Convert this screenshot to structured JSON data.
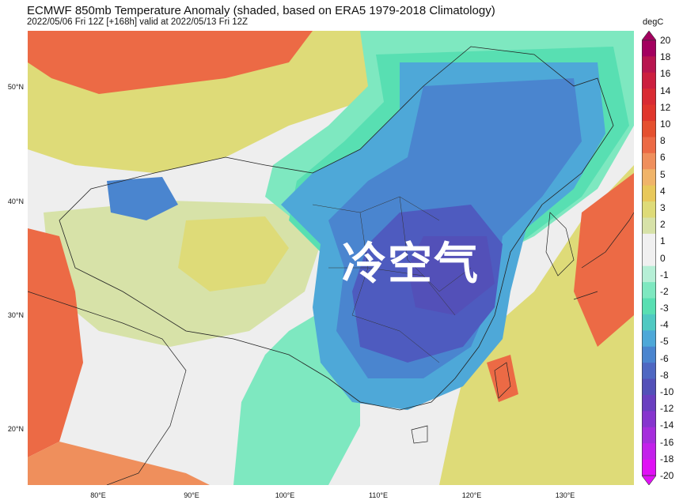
{
  "title": "ECMWF 850mb Temperature Anomaly (shaded, based on ERA5 1979-2018 Climatology)",
  "subtitle": "2022/05/06 Fri 12Z [+168h] valid at 2022/05/13 Fri 12Z",
  "overlay_text": "冷空气",
  "colorbar": {
    "unit": "degC",
    "ticks": [
      "20",
      "18",
      "16",
      "14",
      "12",
      "10",
      "8",
      "6",
      "5",
      "4",
      "3",
      "2",
      "1",
      "0",
      "-1",
      "-2",
      "-3",
      "-4",
      "-5",
      "-6",
      "-8",
      "-10",
      "-12",
      "-14",
      "-16",
      "-18",
      "-20"
    ],
    "colors": [
      "#a3005f",
      "#b8154f",
      "#cc1f3f",
      "#d92b33",
      "#e0362c",
      "#e5502f",
      "#ec6a45",
      "#ef8f5c",
      "#f0b469",
      "#e8c85a",
      "#dedb78",
      "#d7e2a8",
      "#f0f0f0",
      "#f0f0f0",
      "#b6efd6",
      "#7ee8c0",
      "#58dfb2",
      "#4fc9c2",
      "#4ea8d8",
      "#4a85cf",
      "#4e67c2",
      "#5350b8",
      "#6a3fc0",
      "#8635ce",
      "#a52ddc",
      "#c321eb",
      "#e010f5"
    ]
  },
  "axes": {
    "lat_labels": [
      "50°N",
      "40°N",
      "30°N",
      "20°N"
    ],
    "lon_labels": [
      "80°E",
      "90°E",
      "100°E",
      "110°E",
      "120°E",
      "130°E"
    ]
  },
  "colors": {
    "strong_cold": "#4e5bbf",
    "cold": "#4a85cf",
    "cool": "#58dfb2",
    "neutral": "#f0f0f0",
    "warm": "#dedb78",
    "hot": "#ec6a45"
  }
}
